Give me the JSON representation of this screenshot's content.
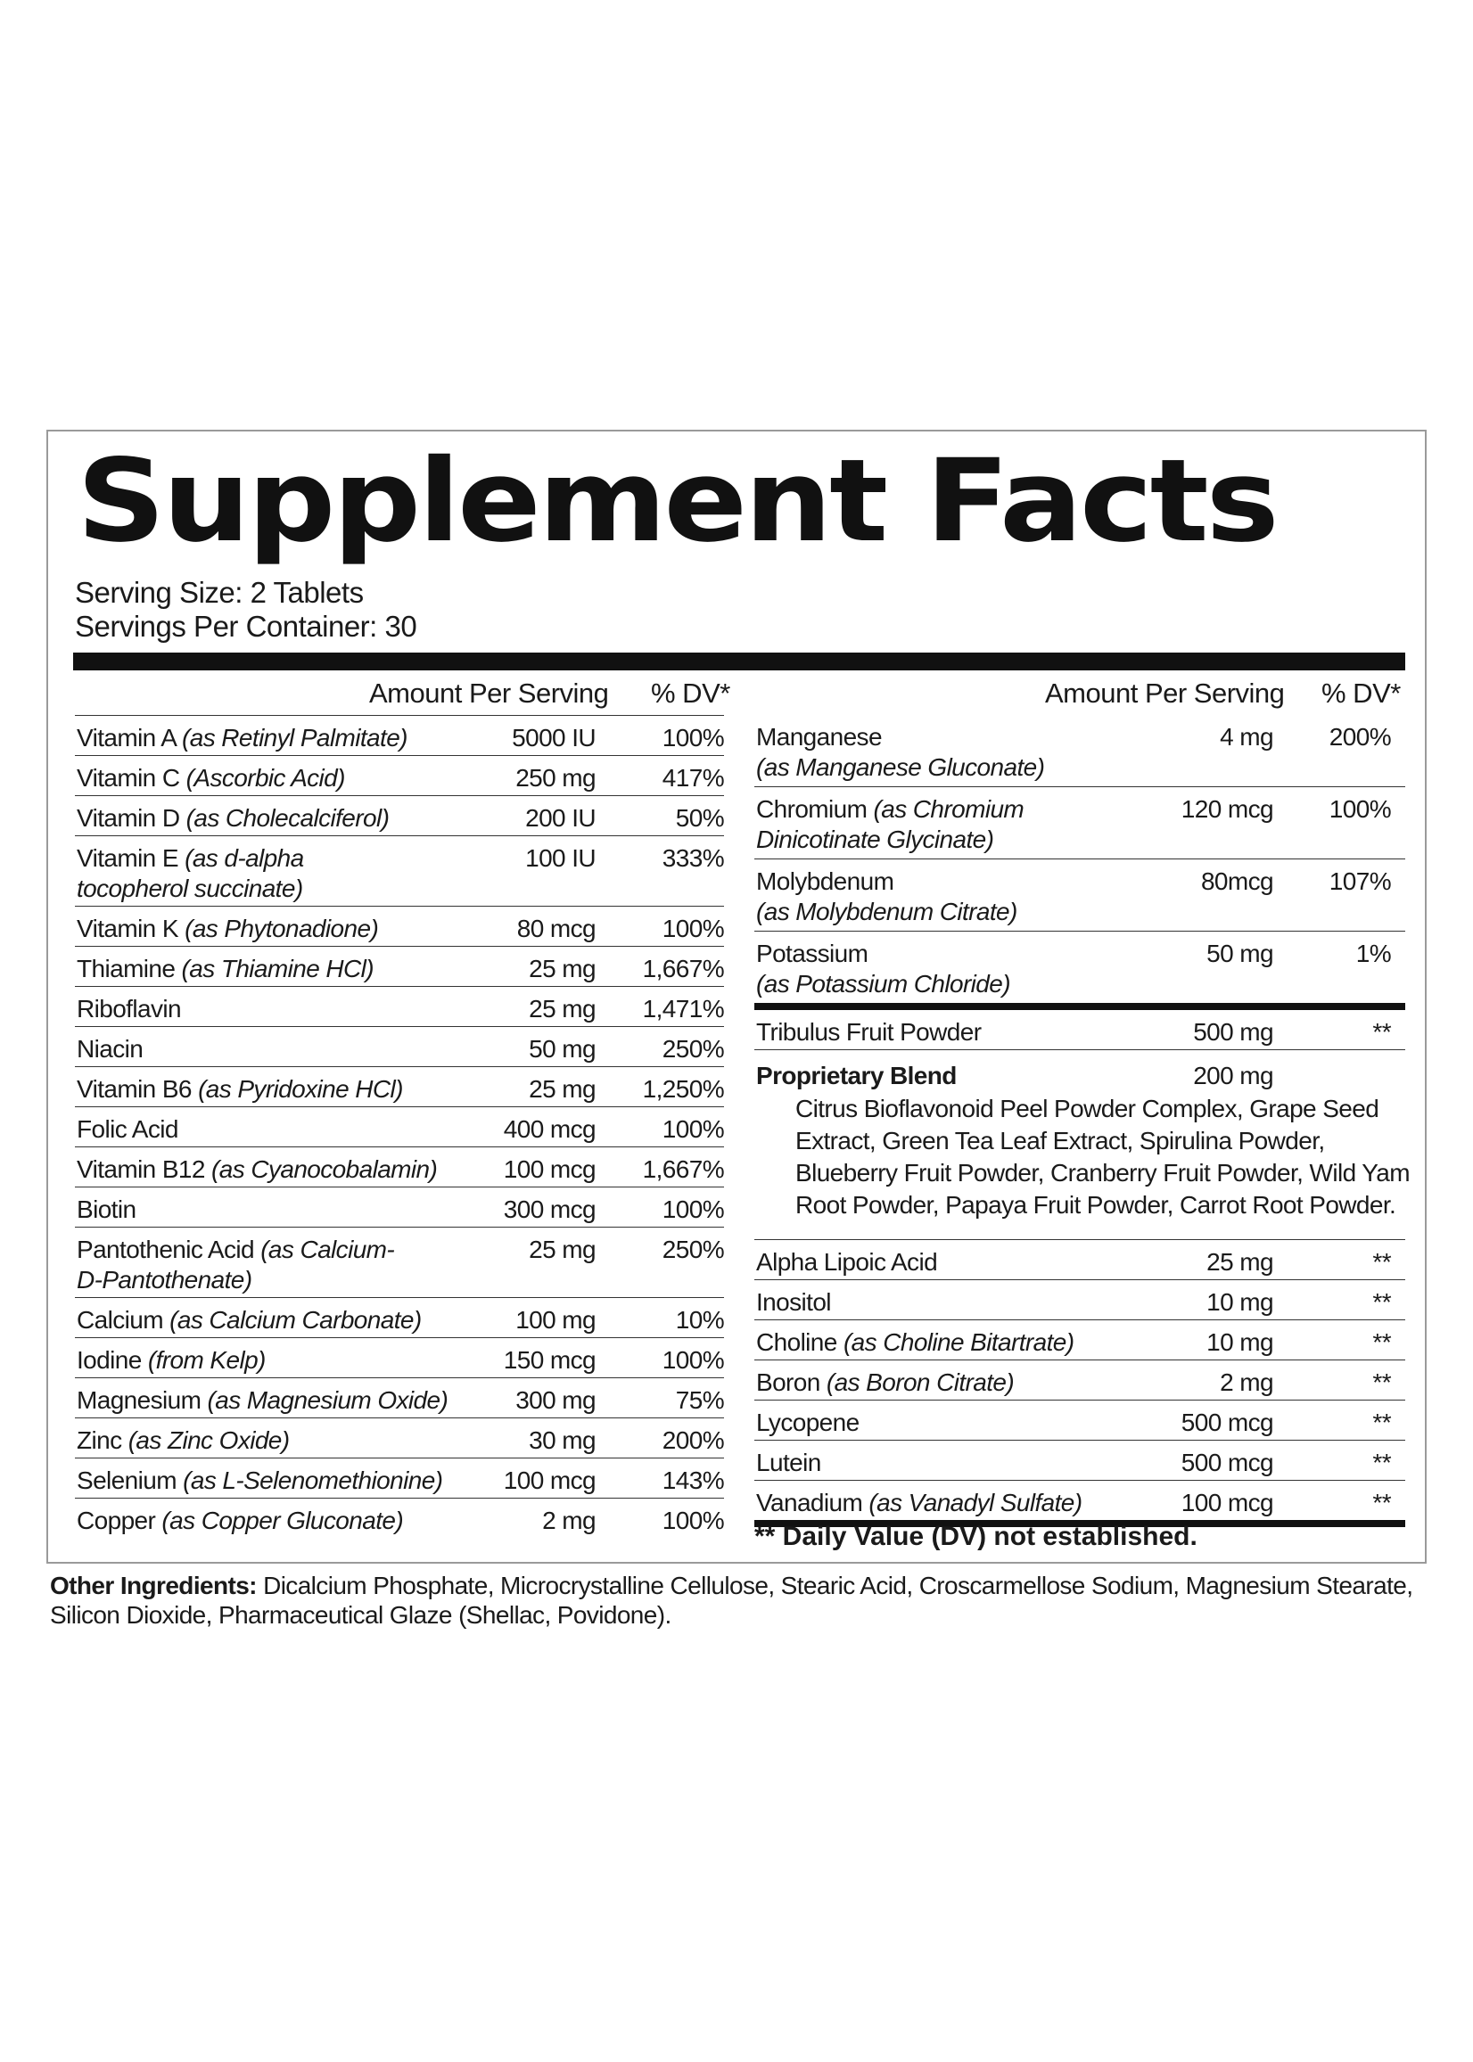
{
  "title": "Supplement Facts",
  "serving_size": "Serving Size: 2 Tablets",
  "servings_per_container": "Servings Per Container: 30",
  "headers": {
    "amount": "Amount Per Serving",
    "dv": "% DV*"
  },
  "left_rows": [
    {
      "name": "Vitamin A",
      "source": "(as Retinyl Palmitate)",
      "amount": "5000 IU",
      "dv": "100%"
    },
    {
      "name": "Vitamin C",
      "source": "(Ascorbic Acid)",
      "amount": "250 mg",
      "dv": "417%"
    },
    {
      "name": "Vitamin D",
      "source": "(as Cholecalciferol)",
      "amount": "200 IU",
      "dv": "50%"
    },
    {
      "name": "Vitamin E",
      "source": "(as d-alpha",
      "source2": "tocopherol succinate)",
      "amount": "100 IU",
      "dv": "333%"
    },
    {
      "name": "Vitamin K",
      "source": "(as Phytonadione)",
      "amount": "80 mcg",
      "dv": "100%"
    },
    {
      "name": "Thiamine",
      "source": "(as Thiamine HCl)",
      "amount": "25 mg",
      "dv": "1,667%"
    },
    {
      "name": "Riboflavin",
      "source": "",
      "amount": "25 mg",
      "dv": "1,471%"
    },
    {
      "name": "Niacin",
      "source": "",
      "amount": "50 mg",
      "dv": "250%"
    },
    {
      "name": "Vitamin B6",
      "source": "(as Pyridoxine HCl)",
      "amount": "25 mg",
      "dv": "1,250%"
    },
    {
      "name": "Folic Acid",
      "source": "",
      "amount": "400 mcg",
      "dv": "100%"
    },
    {
      "name": "Vitamin B12",
      "source": "(as Cyanocobalamin)",
      "amount": "100 mcg",
      "dv": "1,667%"
    },
    {
      "name": "Biotin",
      "source": "",
      "amount": "300 mcg",
      "dv": "100%"
    },
    {
      "name": "Pantothenic Acid",
      "source": "(as Calcium-",
      "source2": "D-Pantothenate)",
      "amount": "25 mg",
      "dv": "250%"
    },
    {
      "name": "Calcium",
      "source": "(as Calcium Carbonate)",
      "amount": "100 mg",
      "dv": "10%"
    },
    {
      "name": "Iodine",
      "source": "(from Kelp)",
      "amount": "150 mcg",
      "dv": "100%"
    },
    {
      "name": "Magnesium",
      "source": "(as Magnesium Oxide)",
      "amount": "300 mg",
      "dv": "75%"
    },
    {
      "name": "Zinc",
      "source": "(as Zinc Oxide)",
      "amount": "30 mg",
      "dv": "200%"
    },
    {
      "name": "Selenium",
      "source": "(as L-Selenomethionine)",
      "amount": "100 mcg",
      "dv": "143%"
    },
    {
      "name": "Copper",
      "source": "(as Copper Gluconate)",
      "amount": "2 mg",
      "dv": "100%"
    }
  ],
  "right_rows_top": [
    {
      "name": "Manganese",
      "source": "",
      "source2": "(as Manganese Gluconate)",
      "amount": "4 mg",
      "dv": "200%"
    },
    {
      "name": "Chromium",
      "source": "(as Chromium",
      "source2": "Dinicotinate Glycinate)",
      "amount": "120 mcg",
      "dv": "100%"
    },
    {
      "name": "Molybdenum",
      "source": "",
      "source2": "(as Molybdenum Citrate)",
      "amount": "80mcg",
      "dv": "107%"
    },
    {
      "name": "Potassium",
      "source": "",
      "source2": "(as Potassium Chloride)",
      "amount": "50 mg",
      "dv": "1%"
    }
  ],
  "tribulus": {
    "name": "Tribulus Fruit Powder",
    "amount": "500 mg",
    "dv": "**"
  },
  "blend": {
    "name": "Proprietary Blend",
    "amount": "200 mg",
    "desc": "Citrus Bioflavonoid Peel Powder Complex, Grape Seed Extract, Green Tea Leaf Extract, Spirulina Powder, Blueberry Fruit Powder, Cranberry Fruit Powder, Wild Yam Root Powder, Papaya Fruit Powder, Carrot Root Powder."
  },
  "right_rows_bottom": [
    {
      "name": "Alpha Lipoic Acid",
      "source": "",
      "amount": "25 mg",
      "dv": "**"
    },
    {
      "name": "Inositol",
      "source": "",
      "amount": "10 mg",
      "dv": "**"
    },
    {
      "name": "Choline",
      "source": "(as Choline Bitartrate)",
      "amount": "10 mg",
      "dv": "**"
    },
    {
      "name": "Boron",
      "source": "(as Boron Citrate)",
      "amount": "2 mg",
      "dv": "**"
    },
    {
      "name": "Lycopene",
      "source": "",
      "amount": "500 mcg",
      "dv": "**"
    },
    {
      "name": "Lutein",
      "source": "",
      "amount": "500 mcg",
      "dv": "**"
    },
    {
      "name": "Vanadium",
      "source": "(as Vanadyl Sulfate)",
      "amount": "100 mcg",
      "dv": "**"
    }
  ],
  "dv_note": "** Daily Value (DV) not established.",
  "other_ingredients": {
    "label": "Other Ingredients:",
    "text": " Dicalcium Phosphate, Microcrystalline Cellulose, Stearic Acid, Croscarmellose Sodium, Magnesium Stearate, Silicon Dioxide, Pharmaceutical Glaze (Shellac, Povidone)."
  }
}
